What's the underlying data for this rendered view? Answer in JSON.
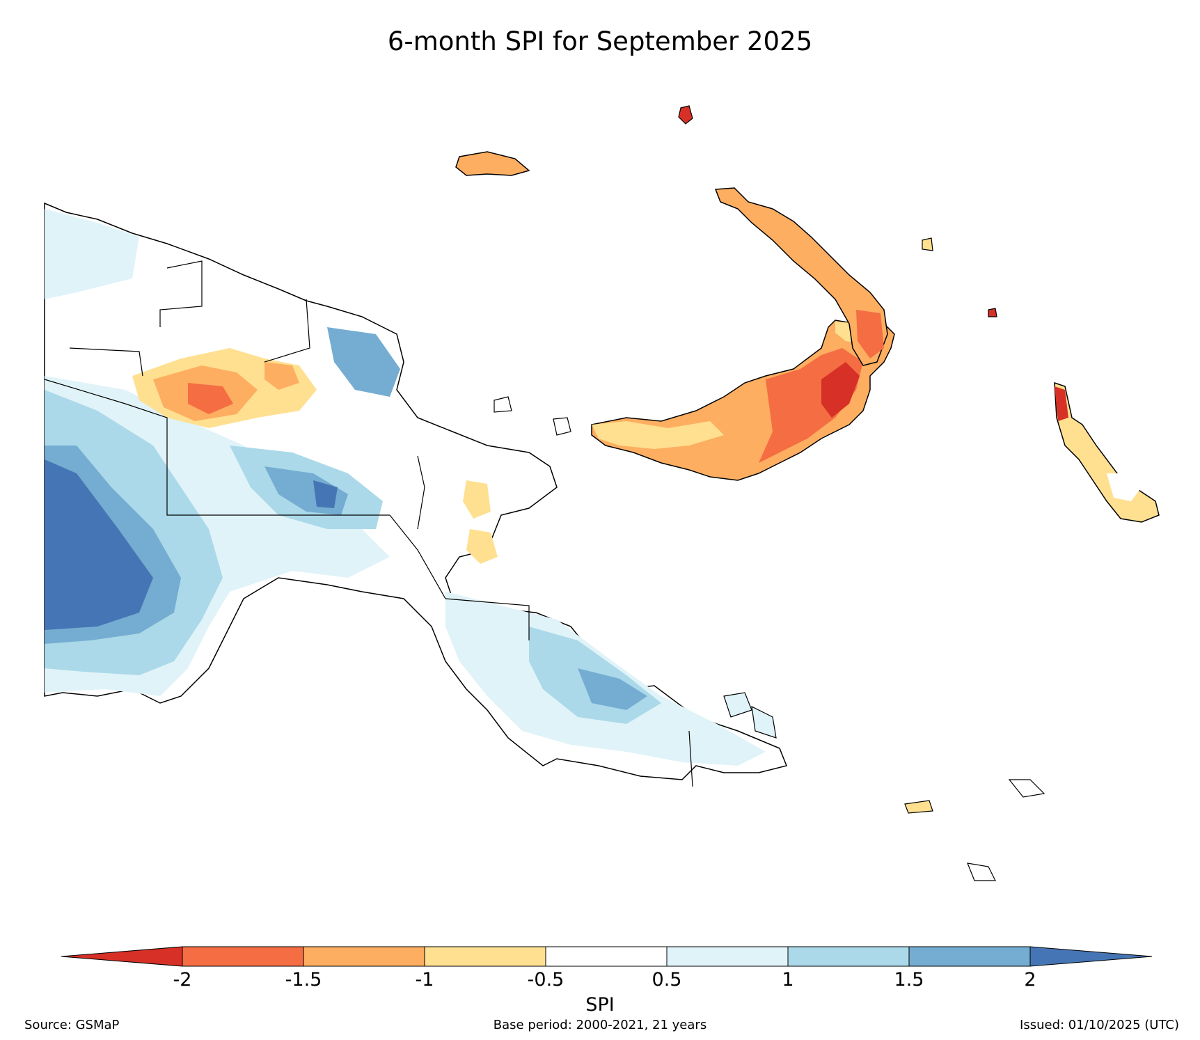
{
  "title": "6-month SPI for September 2025",
  "colorbar": {
    "label": "SPI",
    "ticks": [
      "-2",
      "-1.5",
      "-1",
      "-0.5",
      "0.5",
      "1",
      "1.5",
      "2"
    ],
    "tick_values": [
      -2,
      -1.5,
      -1,
      -0.5,
      0.5,
      1,
      1.5,
      2
    ],
    "colors": [
      "#d73027",
      "#f46d43",
      "#fdae61",
      "#fee090",
      "#ffffff",
      "#e0f3f8",
      "#abd9e9",
      "#74add1",
      "#4575b4"
    ]
  },
  "footer": {
    "source": "Source: GSMaP",
    "base_period": "Base period: 2000-2021, 21 years",
    "issued": "Issued: 01/10/2025 (UTC)"
  }
}
